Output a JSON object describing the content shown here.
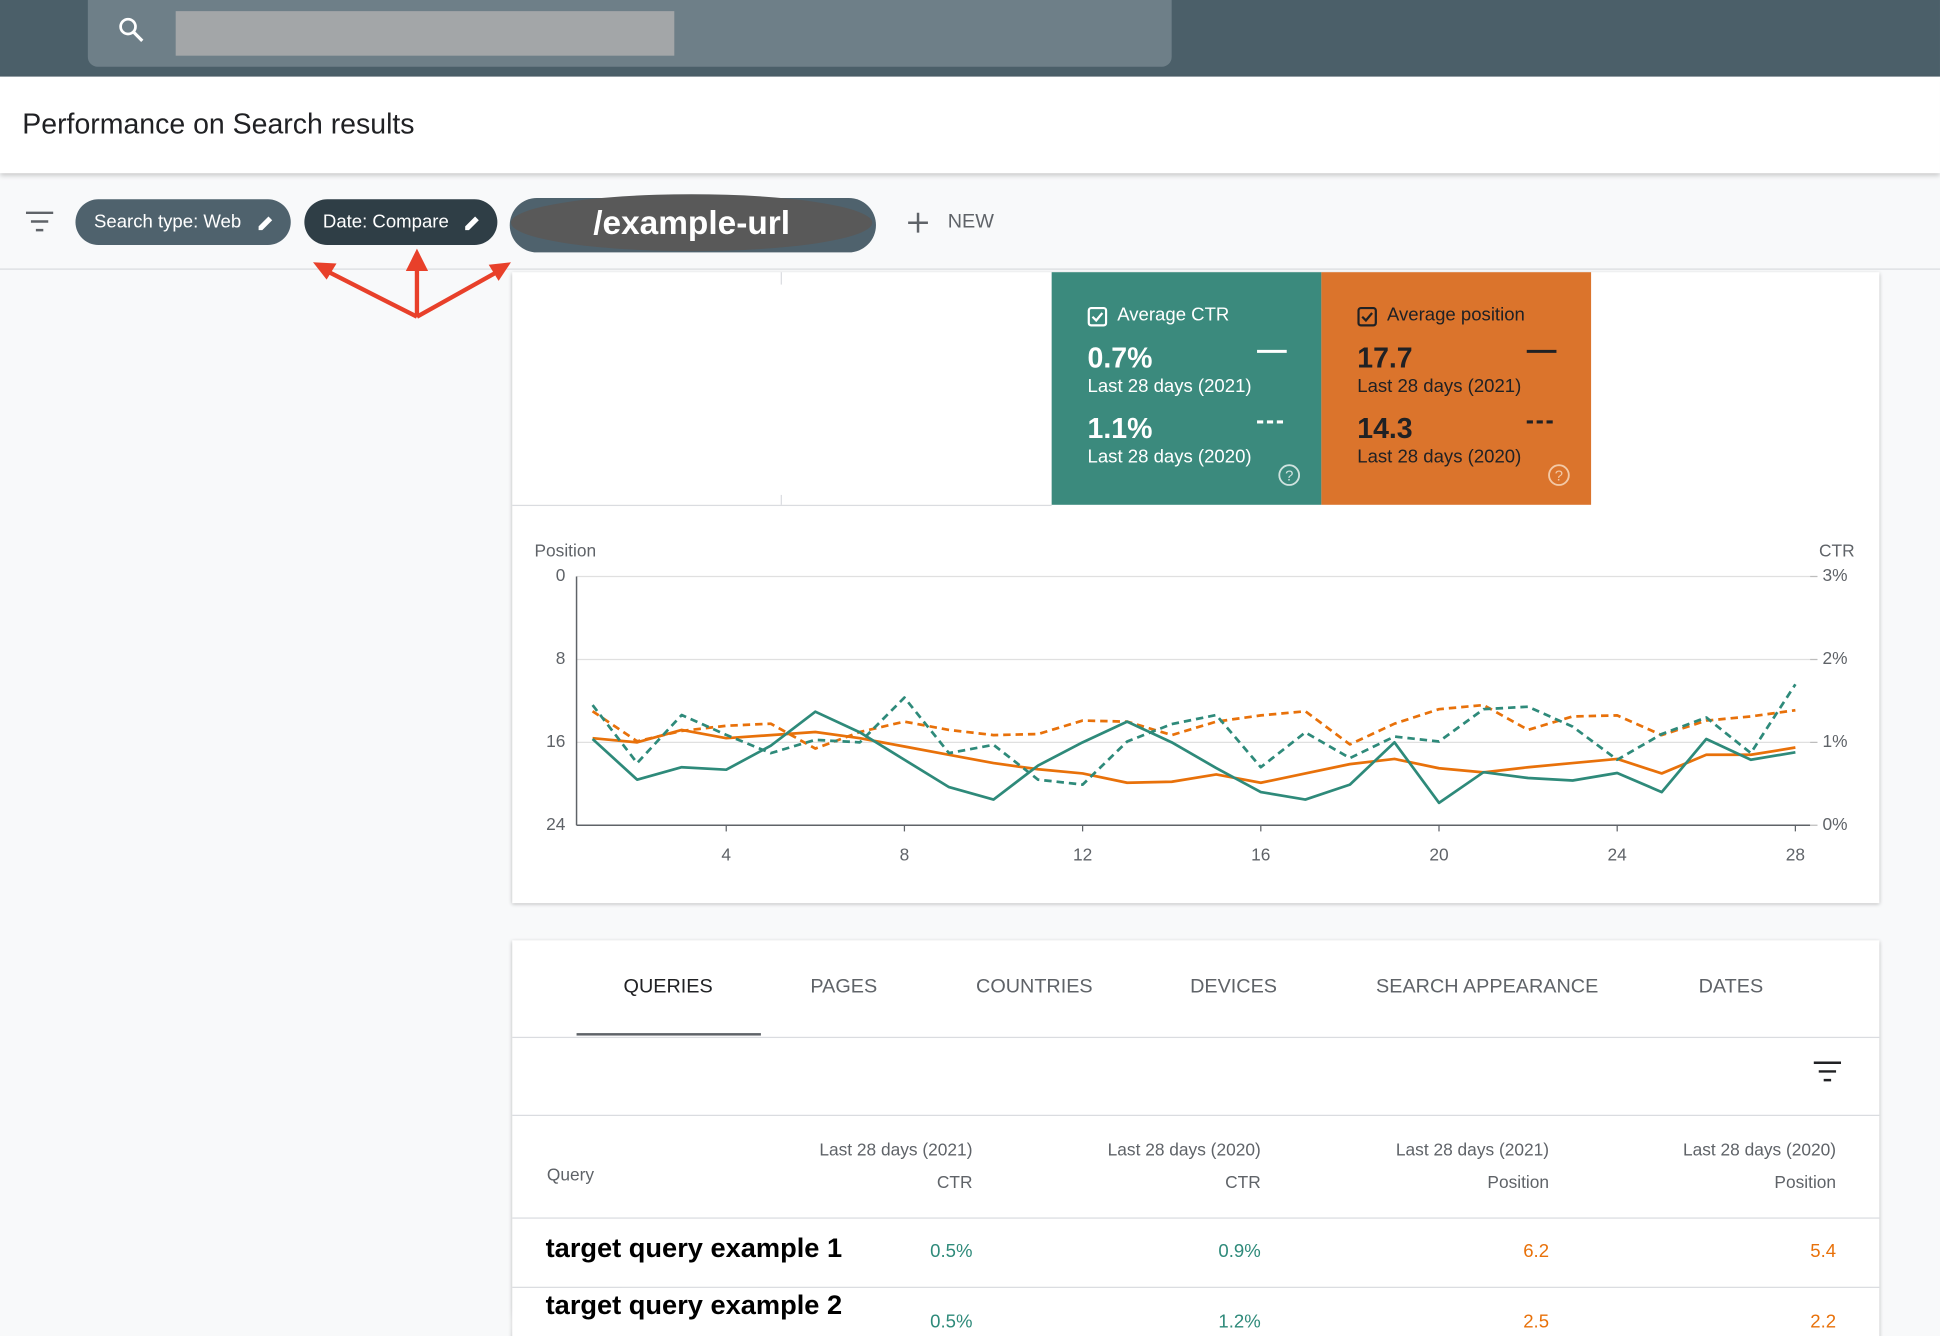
{
  "header": {
    "title": "Performance on Search results"
  },
  "filters": {
    "chips": [
      "Search type: Web",
      "Date: Compare",
      "/example-url"
    ],
    "new": "NEW"
  },
  "metrics": [
    {
      "label": "Average CTR",
      "rows": [
        {
          "value": "0.7%",
          "period": "Last 28 days (2021)"
        },
        {
          "value": "1.1%",
          "period": "Last 28 days (2020)"
        }
      ]
    },
    {
      "label": "Average position",
      "rows": [
        {
          "value": "17.7",
          "period": "Last 28 days (2021)"
        },
        {
          "value": "14.3",
          "period": "Last 28 days (2020)"
        }
      ]
    }
  ],
  "chart_data": {
    "type": "line",
    "y_label": "Position",
    "y2_label": "CTR",
    "x": [
      1,
      2,
      3,
      4,
      5,
      6,
      7,
      8,
      9,
      10,
      11,
      12,
      13,
      14,
      15,
      16,
      17,
      18,
      19,
      20,
      21,
      22,
      23,
      24,
      25,
      26,
      27,
      28
    ],
    "xlim": [
      0.64,
      28.33
    ],
    "xticks": [
      4,
      8,
      12,
      16,
      20,
      24,
      28
    ],
    "ylim": [
      24,
      0
    ],
    "yticks": [
      0,
      8,
      16,
      24
    ],
    "y2lim": [
      0,
      3
    ],
    "y2ticks": [
      {
        "value": 3,
        "label": "3%"
      },
      {
        "value": 2,
        "label": "2%"
      },
      {
        "value": 1,
        "label": "1%"
      },
      {
        "value": 0,
        "label": "0%"
      }
    ],
    "grid": true,
    "series": [
      {
        "color": "#e8710a",
        "dashed": false,
        "values": [
          15.6,
          16.0,
          14.8,
          15.6,
          15.3,
          15.0,
          15.6,
          16.4,
          17.2,
          18.0,
          18.6,
          19.0,
          19.9,
          19.8,
          19.1,
          19.9,
          19.0,
          18.1,
          17.6,
          18.5,
          18.9,
          18.4,
          18.0,
          17.6,
          19.0,
          17.2,
          17.2,
          16.5
        ]
      },
      {
        "color": "#e8710a",
        "dashed": true,
        "values": [
          13.0,
          15.9,
          14.9,
          14.4,
          14.2,
          16.6,
          15.0,
          14.0,
          14.8,
          15.3,
          15.2,
          13.9,
          14.0,
          15.3,
          14.0,
          13.4,
          13.0,
          16.2,
          14.2,
          12.8,
          12.4,
          14.8,
          13.5,
          13.4,
          15.3,
          13.9,
          13.5,
          12.9
        ]
      },
      {
        "color": "#2e8a7a",
        "dashed": false,
        "axis": "y2",
        "values": [
          1.04,
          0.55,
          0.7,
          0.67,
          0.96,
          1.37,
          1.12,
          0.79,
          0.46,
          0.31,
          0.72,
          1.0,
          1.25,
          1.0,
          0.69,
          0.4,
          0.31,
          0.49,
          1.0,
          0.27,
          0.64,
          0.57,
          0.54,
          0.63,
          0.4,
          1.04,
          0.79,
          0.88
        ]
      },
      {
        "color": "#2e8a7a",
        "dashed": true,
        "axis": "y2",
        "values": [
          1.45,
          0.75,
          1.33,
          1.09,
          0.87,
          1.03,
          1.0,
          1.54,
          0.87,
          0.97,
          0.55,
          0.49,
          1.01,
          1.22,
          1.33,
          0.7,
          1.12,
          0.81,
          1.07,
          1.01,
          1.4,
          1.43,
          1.19,
          0.79,
          1.1,
          1.3,
          0.87,
          1.7
        ]
      }
    ]
  },
  "tabs": [
    "QUERIES",
    "PAGES",
    "COUNTRIES",
    "DEVICES",
    "SEARCH APPEARANCE",
    "DATES"
  ],
  "table": {
    "query_header": "Query",
    "columns": [
      {
        "period": "Last 28 days (2021)",
        "metric": "CTR"
      },
      {
        "period": "Last 28 days (2020)",
        "metric": "CTR"
      },
      {
        "period": "Last 28 days (2021)",
        "metric": "Position"
      },
      {
        "period": "Last 28 days (2020)",
        "metric": "Position"
      }
    ],
    "rows": [
      [
        "target query example 1",
        "0.5%",
        "0.9%",
        "6.2",
        "5.4"
      ],
      [
        "target query example 2",
        "0.5%",
        "1.2%",
        "2.5",
        "2.2"
      ]
    ]
  }
}
